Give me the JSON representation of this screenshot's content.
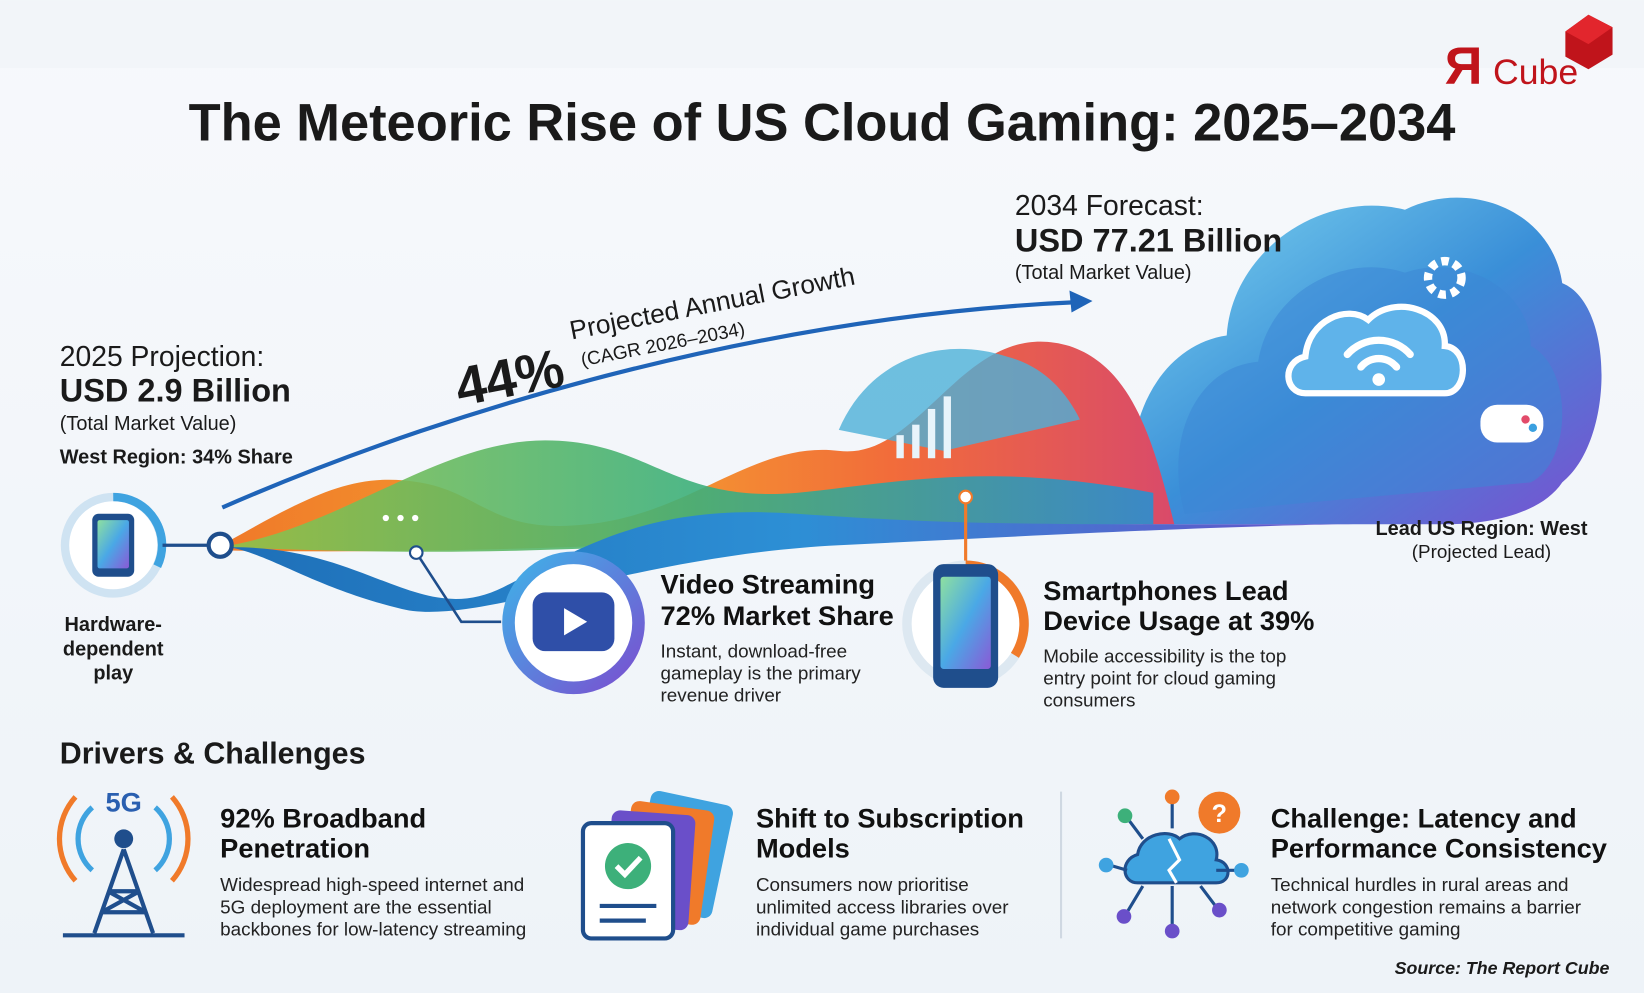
{
  "logo": {
    "mark": "Я",
    "text": "Cube"
  },
  "title": "The Meteoric Rise of US Cloud Gaming: 2025–2034",
  "forecast": {
    "label": "2034 Forecast:",
    "value": "USD 77.21 Billion",
    "note": "(Total Market Value)"
  },
  "growth": {
    "value": "44%",
    "label": "Projected Annual Growth",
    "note": "(CAGR 2026–2034)"
  },
  "projection": {
    "label": "2025 Projection:",
    "value": "USD 2.9 Billion",
    "note": "(Total Market Value)",
    "region": "West Region: 34% Share"
  },
  "hardware": {
    "lines": [
      "Hardware-",
      "dependent",
      "play"
    ]
  },
  "lead_region": {
    "label": "Lead US Region: West",
    "note": "(Projected Lead)"
  },
  "video": {
    "title": [
      "Video Streaming",
      "72% Market Share"
    ],
    "description": [
      "Instant, download-free",
      "gameplay is the primary",
      "revenue driver"
    ]
  },
  "smartphones": {
    "title": [
      "Smartphones Lead",
      "Device Usage at 39%"
    ],
    "description": [
      "Mobile accessibility is the top",
      "entry point for cloud gaming",
      "consumers"
    ]
  },
  "drivers": {
    "heading": "Drivers & Challenges",
    "items": [
      {
        "icon_label": "5G",
        "title": [
          "92% Broadband",
          "Penetration"
        ],
        "description": [
          "Widespread high-speed internet and",
          "5G deployment are the essential",
          "backbones for low-latency streaming"
        ]
      },
      {
        "title": [
          "Shift to Subscription",
          "Models"
        ],
        "description": [
          "Consumers now prioritise",
          "unlimited access libraries over",
          "individual game purchases"
        ]
      },
      {
        "title": [
          "Challenge: Latency and",
          "Performance Consistency"
        ],
        "description": [
          "Technical hurdles in rural areas and",
          "network congestion remains a barrier",
          "for competitive gaming"
        ]
      }
    ]
  },
  "source": "Source: The Report Cube"
}
